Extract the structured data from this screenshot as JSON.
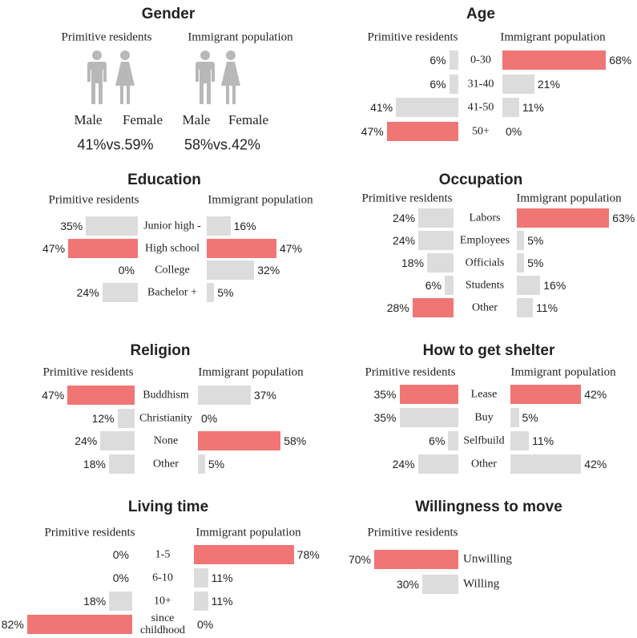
{
  "chart_data": [
    {
      "type": "pictogram",
      "title": "Gender",
      "categories": [
        "Male",
        "Female"
      ],
      "color": "#b8b8b8",
      "series": [
        {
          "name": "Primitive residents",
          "values": [
            41,
            59
          ],
          "value_label": "41%vs.59%"
        },
        {
          "name": "Immigrant population",
          "values": [
            58,
            42
          ],
          "value_label": "58%vs.42%"
        }
      ]
    },
    {
      "type": "butterfly",
      "title": "Age",
      "categories": [
        "0-30",
        "31-40",
        "41-50",
        "50+"
      ],
      "series": [
        {
          "name": "Primitive residents",
          "values": [
            6,
            6,
            41,
            47
          ],
          "value_labels": [
            "6%",
            "6%",
            "41%",
            "47%"
          ],
          "colors": [
            "#dcdcdc",
            "#dcdcdc",
            "#dcdcdc",
            "#f07575"
          ]
        },
        {
          "name": "Immigrant population",
          "values": [
            68,
            21,
            11,
            0
          ],
          "value_labels": [
            "68%",
            "21%",
            "11%",
            "0%"
          ],
          "colors": [
            "#f07575",
            "#dcdcdc",
            "#dcdcdc",
            "#dcdcdc"
          ]
        }
      ]
    },
    {
      "type": "butterfly",
      "title": "Education",
      "categories": [
        "Junior high -",
        "High school",
        "College",
        "Bachelor +"
      ],
      "series": [
        {
          "name": "Primitive residents",
          "values": [
            35,
            47,
            0,
            24
          ],
          "value_labels": [
            "35%",
            "47%",
            "0%",
            "24%"
          ],
          "colors": [
            "#dcdcdc",
            "#f07575",
            "#dcdcdc",
            "#dcdcdc"
          ]
        },
        {
          "name": "Immigrant population",
          "values": [
            16,
            47,
            32,
            5
          ],
          "value_labels": [
            "16%",
            "47%",
            "32%",
            "5%"
          ],
          "colors": [
            "#dcdcdc",
            "#f07575",
            "#dcdcdc",
            "#dcdcdc"
          ]
        }
      ]
    },
    {
      "type": "butterfly",
      "title": "Occupation",
      "categories": [
        "Labors",
        "Employees",
        "Officials",
        "Students",
        "Other"
      ],
      "series": [
        {
          "name": "Primitive residents",
          "values": [
            24,
            24,
            18,
            6,
            28
          ],
          "value_labels": [
            "24%",
            "24%",
            "18%",
            "6%",
            "28%"
          ],
          "colors": [
            "#dcdcdc",
            "#dcdcdc",
            "#dcdcdc",
            "#dcdcdc",
            "#f07575"
          ]
        },
        {
          "name": "Immigrant population",
          "values": [
            63,
            5,
            5,
            16,
            11
          ],
          "value_labels": [
            "63%",
            "5%",
            "5%",
            "16%",
            "11%"
          ],
          "colors": [
            "#f07575",
            "#dcdcdc",
            "#dcdcdc",
            "#dcdcdc",
            "#dcdcdc"
          ]
        }
      ]
    },
    {
      "type": "butterfly",
      "title": "Religion",
      "categories": [
        "Buddhism",
        "Christianity",
        "None",
        "Other"
      ],
      "series": [
        {
          "name": "Primitive residents",
          "values": [
            47,
            12,
            24,
            18
          ],
          "value_labels": [
            "47%",
            "12%",
            "24%",
            "18%"
          ],
          "colors": [
            "#f07575",
            "#dcdcdc",
            "#dcdcdc",
            "#dcdcdc"
          ]
        },
        {
          "name": "Immigrant population",
          "values": [
            37,
            0,
            58,
            5
          ],
          "value_labels": [
            "37%",
            "0%",
            "58%",
            "5%"
          ],
          "colors": [
            "#dcdcdc",
            "#dcdcdc",
            "#f07575",
            "#dcdcdc"
          ]
        }
      ]
    },
    {
      "type": "butterfly",
      "title": "How to get shelter",
      "categories": [
        "Lease",
        "Buy",
        "Selfbuild",
        "Other"
      ],
      "series": [
        {
          "name": "Primitive residents",
          "values": [
            35,
            35,
            6,
            24
          ],
          "value_labels": [
            "35%",
            "35%",
            "6%",
            "24%"
          ],
          "colors": [
            "#f07575",
            "#dcdcdc",
            "#dcdcdc",
            "#dcdcdc"
          ]
        },
        {
          "name": "Immigrant population",
          "values": [
            42,
            5,
            11,
            42
          ],
          "value_labels": [
            "42%",
            "5%",
            "11%",
            "42%"
          ],
          "colors": [
            "#f07575",
            "#dcdcdc",
            "#dcdcdc",
            "#dcdcdc"
          ]
        }
      ]
    },
    {
      "type": "butterfly",
      "title": "Living time",
      "categories": [
        "1-5",
        "6-10",
        "10+",
        "since childhood"
      ],
      "series": [
        {
          "name": "Primitive residents",
          "values": [
            0,
            0,
            18,
            82
          ],
          "value_labels": [
            "0%",
            "0%",
            "18%",
            "82%"
          ],
          "colors": [
            "#dcdcdc",
            "#dcdcdc",
            "#dcdcdc",
            "#f07575"
          ]
        },
        {
          "name": "Immigrant population",
          "values": [
            78,
            11,
            11,
            0
          ],
          "value_labels": [
            "78%",
            "11%",
            "11%",
            "0%"
          ],
          "colors": [
            "#f07575",
            "#dcdcdc",
            "#dcdcdc",
            "#dcdcdc"
          ]
        }
      ]
    },
    {
      "type": "butterfly",
      "title": "Willingness to move",
      "categories": [
        "Unwilling",
        "Willing"
      ],
      "series": [
        {
          "name": "Primitive residents",
          "values": [
            70,
            30
          ],
          "value_labels": [
            "70%",
            "30%"
          ],
          "colors": [
            "#f07575",
            "#dcdcdc"
          ]
        }
      ]
    }
  ]
}
